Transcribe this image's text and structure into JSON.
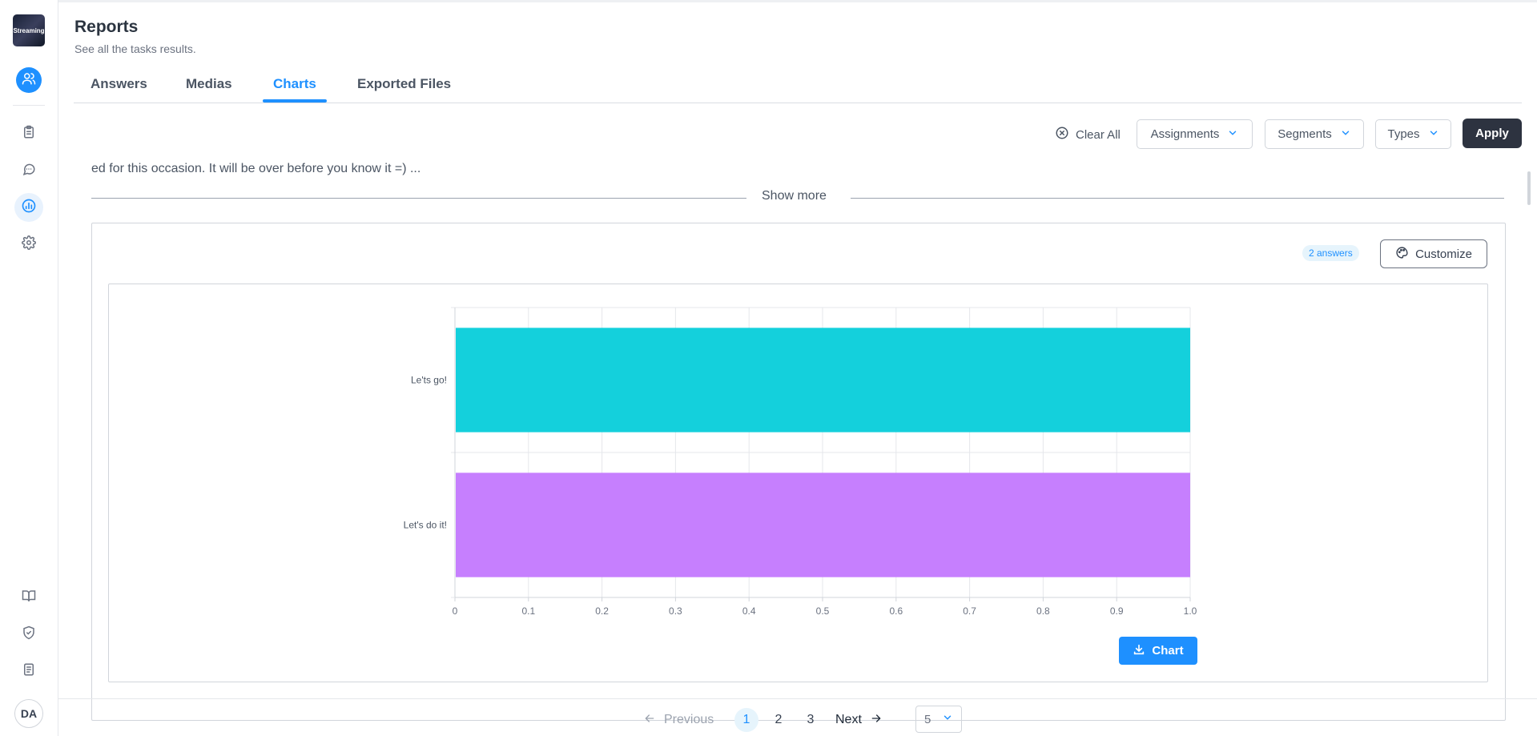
{
  "sidebar": {
    "logo_text": "Streaming",
    "avatar_initials": "DA",
    "accent": "#1e90ff"
  },
  "header": {
    "title": "Reports",
    "subtitle": "See all the tasks results."
  },
  "tabs": [
    {
      "label": "Answers",
      "active": false
    },
    {
      "label": "Medias",
      "active": false
    },
    {
      "label": "Charts",
      "active": true
    },
    {
      "label": "Exported Files",
      "active": false
    }
  ],
  "filters": {
    "clear_all": "Clear All",
    "assignments": "Assignments",
    "segments": "Segments",
    "types": "Types",
    "apply": "Apply"
  },
  "question": {
    "description_tail": "ed for this occasion. It will be over before you know it =)  ...",
    "show_more": "Show more"
  },
  "card": {
    "answers_badge": "2 answers",
    "customize": "Customize",
    "download_chart": "Chart"
  },
  "chart_data": {
    "type": "bar",
    "orientation": "horizontal",
    "categories": [
      "Le'ts go!",
      "Let's do it!"
    ],
    "values": [
      1,
      1
    ],
    "colors": [
      "#14d0dc",
      "#c67ffe"
    ],
    "xlim": [
      0,
      1.0
    ],
    "xticks": [
      "0",
      "0.1",
      "0.2",
      "0.3",
      "0.4",
      "0.5",
      "0.6",
      "0.7",
      "0.8",
      "0.9",
      "1.0"
    ],
    "grid": true
  },
  "pagination": {
    "previous": "Previous",
    "pages": [
      "1",
      "2",
      "3"
    ],
    "current": "1",
    "next": "Next",
    "per_page": "5"
  }
}
